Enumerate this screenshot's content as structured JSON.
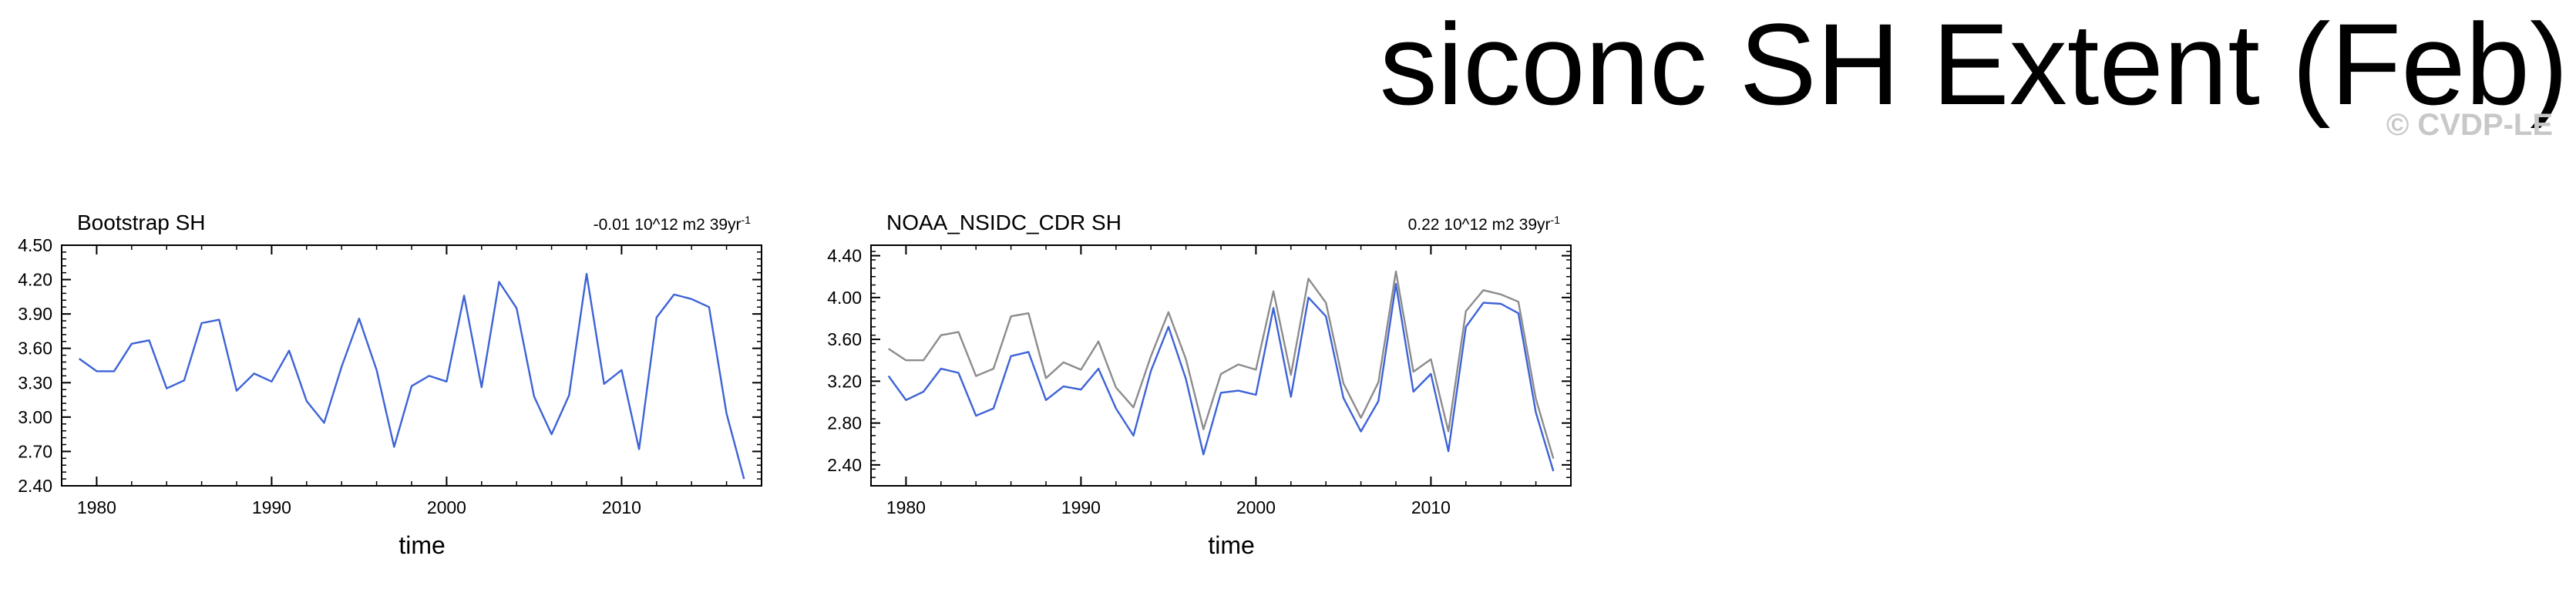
{
  "page": {
    "title": "siconc SH Extent (Feb)",
    "watermark": "© CVDP-LE"
  },
  "colors": {
    "observed": "#3d63d6",
    "reference": "#8c8c8c"
  },
  "chart_data": [
    {
      "type": "line",
      "title": "Bootstrap SH",
      "trend_text": "-0.01 10^12 m2 39yr",
      "trend_exp": "-1",
      "xlabel": "time",
      "ylabel": "",
      "xlim": [
        1978,
        2018
      ],
      "ylim": [
        2.4,
        4.5
      ],
      "xticks": [
        1980,
        1990,
        2000,
        2010
      ],
      "yticks": [
        2.4,
        2.7,
        3.0,
        3.3,
        3.6,
        3.9,
        4.2,
        4.5
      ],
      "ytick_labels": [
        "2.40",
        "2.70",
        "3.00",
        "3.30",
        "3.60",
        "3.90",
        "4.20",
        "4.50"
      ],
      "x": [
        1979,
        1980,
        1981,
        1982,
        1983,
        1984,
        1985,
        1986,
        1987,
        1988,
        1989,
        1990,
        1991,
        1992,
        1993,
        1994,
        1995,
        1996,
        1997,
        1998,
        1999,
        2000,
        2001,
        2002,
        2003,
        2004,
        2005,
        2006,
        2007,
        2008,
        2009,
        2010,
        2011,
        2012,
        2013,
        2014,
        2015,
        2016,
        2017
      ],
      "series": [
        {
          "color": "#3d63d6",
          "values": [
            3.51,
            3.4,
            3.4,
            3.64,
            3.67,
            3.25,
            3.32,
            3.82,
            3.85,
            3.23,
            3.38,
            3.31,
            3.58,
            3.14,
            2.95,
            3.44,
            3.86,
            3.41,
            2.74,
            3.27,
            3.36,
            3.31,
            4.06,
            3.26,
            4.18,
            3.95,
            3.18,
            2.85,
            3.19,
            4.25,
            3.29,
            3.41,
            2.72,
            3.87,
            4.07,
            4.03,
            3.96,
            3.03,
            2.46
          ]
        }
      ]
    },
    {
      "type": "line",
      "title": "NOAA_NSIDC_CDR SH",
      "trend_text": "0.22 10^12 m2 39yr",
      "trend_exp": "-1",
      "xlabel": "time",
      "ylabel": "",
      "xlim": [
        1978,
        2018
      ],
      "ylim": [
        2.2,
        4.5
      ],
      "xticks": [
        1980,
        1990,
        2000,
        2010
      ],
      "yticks": [
        2.4,
        2.8,
        3.2,
        3.6,
        4.0,
        4.4
      ],
      "ytick_labels": [
        "2.40",
        "2.80",
        "3.20",
        "3.60",
        "4.00",
        "4.40"
      ],
      "x": [
        1979,
        1980,
        1981,
        1982,
        1983,
        1984,
        1985,
        1986,
        1987,
        1988,
        1989,
        1990,
        1991,
        1992,
        1993,
        1994,
        1995,
        1996,
        1997,
        1998,
        1999,
        2000,
        2001,
        2002,
        2003,
        2004,
        2005,
        2006,
        2007,
        2008,
        2009,
        2010,
        2011,
        2012,
        2013,
        2014,
        2015,
        2016,
        2017
      ],
      "series": [
        {
          "color": "#8c8c8c",
          "values": [
            3.51,
            3.4,
            3.4,
            3.64,
            3.67,
            3.25,
            3.32,
            3.82,
            3.85,
            3.23,
            3.38,
            3.31,
            3.58,
            3.14,
            2.95,
            3.44,
            3.86,
            3.41,
            2.74,
            3.27,
            3.36,
            3.31,
            4.06,
            3.26,
            4.18,
            3.95,
            3.18,
            2.85,
            3.19,
            4.25,
            3.29,
            3.41,
            2.72,
            3.87,
            4.07,
            4.03,
            3.96,
            3.03,
            2.46
          ]
        },
        {
          "color": "#3d63d6",
          "values": [
            3.25,
            3.02,
            3.1,
            3.32,
            3.28,
            2.87,
            2.94,
            3.44,
            3.48,
            3.02,
            3.15,
            3.12,
            3.32,
            2.94,
            2.68,
            3.3,
            3.72,
            3.22,
            2.5,
            3.09,
            3.11,
            3.07,
            3.9,
            3.05,
            4.0,
            3.82,
            3.04,
            2.72,
            3.01,
            4.13,
            3.1,
            3.27,
            2.53,
            3.72,
            3.95,
            3.94,
            3.85,
            2.9,
            2.34
          ]
        }
      ]
    }
  ]
}
